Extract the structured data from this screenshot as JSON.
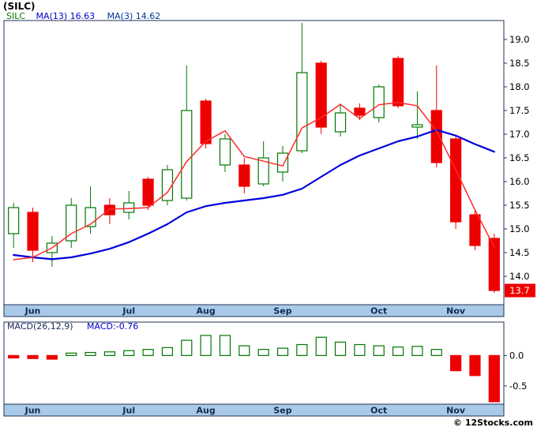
{
  "title": "(SILC)",
  "price_legend": {
    "symbol": "SILC",
    "ma13_label": "MA(13)",
    "ma13_value": "16.63",
    "ma3_label": "MA(3)",
    "ma3_value": "14.62"
  },
  "macd_legend": {
    "label": "MACD(26,12,9)",
    "value": "MACD:-0.76"
  },
  "copyright": "© 12Stocks.com",
  "colors": {
    "up": "#007700",
    "up_fill": "#ffffff",
    "down": "#ee0000",
    "ma13": "#0000dd",
    "ma3": "#ff2a2a",
    "band": "#a9c9e8",
    "border": "#223355",
    "month_text": "#102a50",
    "axis_text": "#000000",
    "last_price_bg": "#ee0000",
    "last_price_text": "#ffffff"
  },
  "chart_data": [
    {
      "type": "candlestick",
      "name": "price-panel",
      "ylim": [
        13.4,
        19.4
      ],
      "y_ticks": [
        19.0,
        18.5,
        18.0,
        17.5,
        17.0,
        16.5,
        16.0,
        15.5,
        15.0,
        14.5,
        14.0
      ],
      "x_ticks": [
        {
          "label": "Jun",
          "index": 1
        },
        {
          "label": "Jul",
          "index": 6
        },
        {
          "label": "Aug",
          "index": 10
        },
        {
          "label": "Sep",
          "index": 14
        },
        {
          "label": "Oct",
          "index": 19
        },
        {
          "label": "Nov",
          "index": 23
        }
      ],
      "candles": [
        [
          14.9,
          15.55,
          14.6,
          15.45
        ],
        [
          15.35,
          15.45,
          14.3,
          14.55
        ],
        [
          14.5,
          14.85,
          14.2,
          14.7
        ],
        [
          14.75,
          15.65,
          14.6,
          15.5
        ],
        [
          15.05,
          15.9,
          14.9,
          15.45
        ],
        [
          15.5,
          15.65,
          15.1,
          15.3
        ],
        [
          15.35,
          15.8,
          15.2,
          15.55
        ],
        [
          16.05,
          16.1,
          15.4,
          15.5
        ],
        [
          15.6,
          16.35,
          15.5,
          16.25
        ],
        [
          15.65,
          18.45,
          15.6,
          17.5
        ],
        [
          17.7,
          17.75,
          16.7,
          16.8
        ],
        [
          16.35,
          17.0,
          16.2,
          16.9
        ],
        [
          16.35,
          16.5,
          15.75,
          15.9
        ],
        [
          15.95,
          16.85,
          15.9,
          16.5
        ],
        [
          16.2,
          16.75,
          16.0,
          16.6
        ],
        [
          16.65,
          19.35,
          16.6,
          18.3
        ],
        [
          18.5,
          18.55,
          17.0,
          17.15
        ],
        [
          17.05,
          17.65,
          16.95,
          17.45
        ],
        [
          17.55,
          17.65,
          17.3,
          17.4
        ],
        [
          17.35,
          18.05,
          17.25,
          18.0
        ],
        [
          18.6,
          18.65,
          17.55,
          17.6
        ],
        [
          17.15,
          17.9,
          16.9,
          17.2
        ],
        [
          17.5,
          18.45,
          16.3,
          16.4
        ],
        [
          16.9,
          16.95,
          15.0,
          15.15
        ],
        [
          15.3,
          15.4,
          14.55,
          14.65
        ],
        [
          14.8,
          14.9,
          13.65,
          13.7
        ]
      ],
      "series": [
        {
          "name": "MA(13)",
          "name_key": "ma13-line",
          "color_key": "ma13",
          "width": 2.2,
          "values": [
            14.45,
            14.4,
            14.36,
            14.4,
            14.48,
            14.58,
            14.72,
            14.9,
            15.1,
            15.35,
            15.48,
            15.55,
            15.6,
            15.65,
            15.72,
            15.85,
            16.1,
            16.35,
            16.55,
            16.7,
            16.85,
            16.95,
            17.09,
            16.97,
            16.79,
            16.63
          ]
        },
        {
          "name": "MA(3)",
          "name_key": "ma3-line",
          "color_key": "ma3",
          "width": 1.5,
          "values": [
            14.35,
            14.4,
            14.6,
            14.9,
            15.1,
            15.42,
            15.43,
            15.45,
            15.77,
            16.42,
            16.85,
            17.07,
            16.53,
            16.43,
            16.33,
            17.13,
            17.35,
            17.63,
            17.33,
            17.62,
            17.67,
            17.6,
            17.07,
            16.25,
            15.4,
            14.62
          ]
        }
      ],
      "last_price": 13.7,
      "last_price_label": "13.7"
    },
    {
      "type": "bar",
      "name": "macd-panel",
      "ylim": [
        -0.8,
        0.55
      ],
      "y_ticks": [
        0.0,
        -0.5
      ],
      "x_ticks": [
        {
          "label": "Jun",
          "index": 1
        },
        {
          "label": "Jul",
          "index": 6
        },
        {
          "label": "Aug",
          "index": 10
        },
        {
          "label": "Sep",
          "index": 14
        },
        {
          "label": "Oct",
          "index": 19
        },
        {
          "label": "Nov",
          "index": 23
        }
      ],
      "values": [
        -0.04,
        -0.05,
        -0.06,
        0.04,
        0.05,
        0.06,
        0.08,
        0.1,
        0.13,
        0.25,
        0.33,
        0.33,
        0.16,
        0.1,
        0.12,
        0.18,
        0.3,
        0.22,
        0.18,
        0.16,
        0.14,
        0.15,
        0.1,
        -0.25,
        -0.33,
        -0.76
      ]
    }
  ]
}
